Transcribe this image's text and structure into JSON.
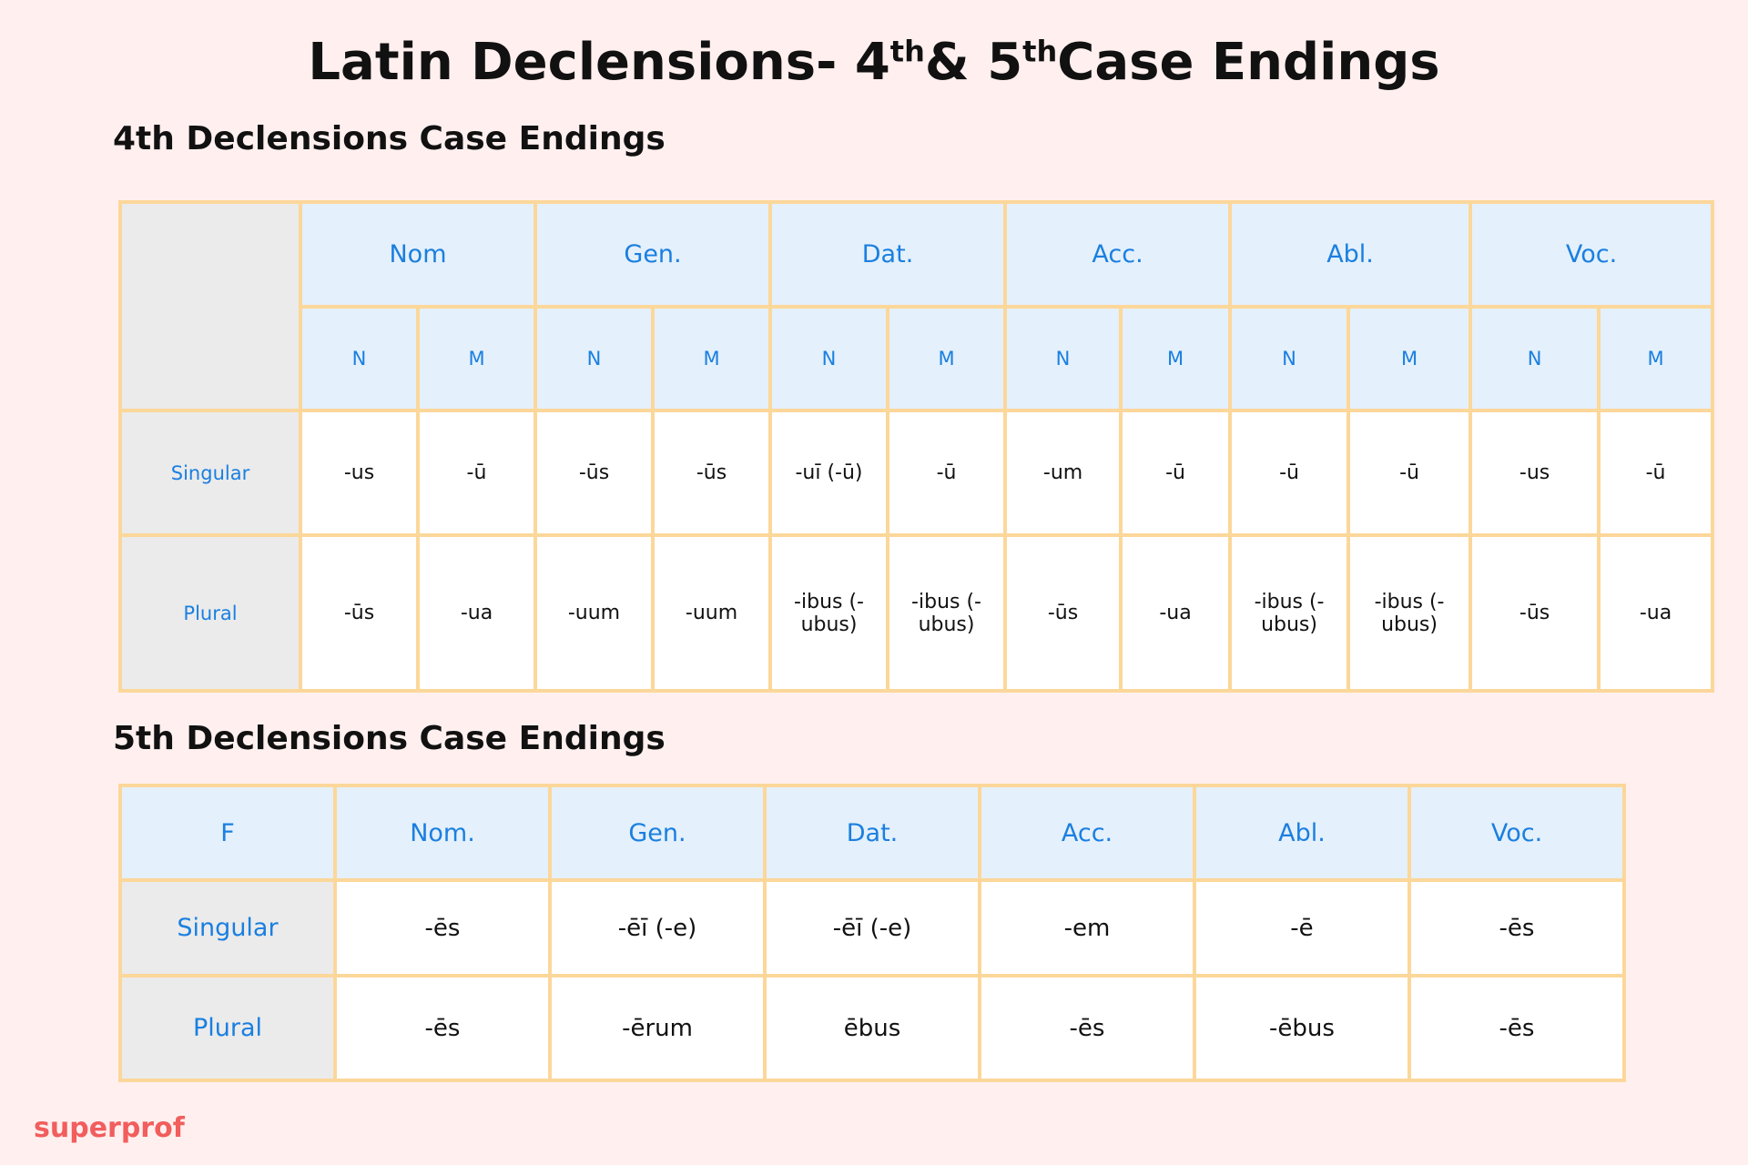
{
  "title": [
    "Latin Declensions- 4",
    "th",
    "& 5",
    "th",
    "Case Endings"
  ],
  "table4": {
    "heading": "4th Declensions Case Endings",
    "cases": [
      "Nom",
      "Gen.",
      "Dat.",
      "Acc.",
      "Abl.",
      "Voc."
    ],
    "genders": [
      "N",
      "M",
      "N",
      "M",
      "N",
      "M",
      "N",
      "M",
      "N",
      "M",
      "N",
      "M"
    ],
    "rows": [
      {
        "label": "Singular",
        "cells": [
          "-us",
          "-ū",
          "-ūs",
          "-ūs",
          "-uī (-ū)",
          "-ū",
          "-um",
          "-ū",
          "-ū",
          "-ū",
          "-us",
          "-ū"
        ]
      },
      {
        "label": "Plural",
        "cells": [
          "-ūs",
          "-ua",
          "-uum",
          "-uum",
          "-ibus (-ubus)",
          "-ibus (-ubus)",
          "-ūs",
          "-ua",
          "-ibus (-ubus)",
          "-ibus (-ubus)",
          "-ūs",
          "-ua"
        ]
      }
    ]
  },
  "table5": {
    "heading": "5th Declensions Case Endings",
    "corner": "F",
    "cases": [
      "Nom.",
      "Gen.",
      "Dat.",
      "Acc.",
      "Abl.",
      "Voc."
    ],
    "rows": [
      {
        "label": "Singular",
        "cells": [
          "-ēs",
          "-ēī (-e)",
          "-ēī (-e)",
          "-em",
          "-ē",
          "-ēs"
        ]
      },
      {
        "label": "Plural",
        "cells": [
          "-ēs",
          "-ērum",
          "ēbus",
          "-ēs",
          "-ēbus",
          "-ēs"
        ]
      }
    ]
  },
  "brand": "superprof"
}
